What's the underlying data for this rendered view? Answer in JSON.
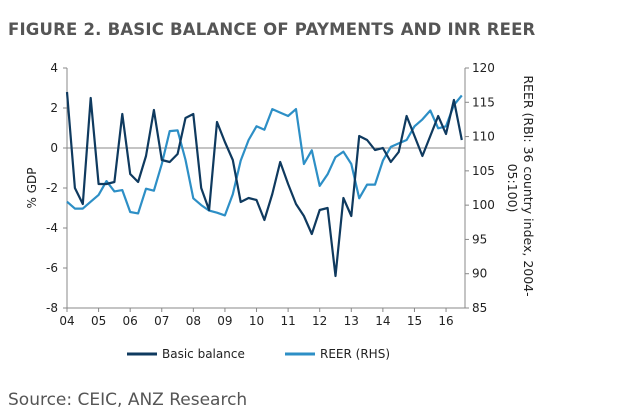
{
  "title": "FIGURE 2. BASIC BALANCE OF PAYMENTS AND INR REER",
  "source": "Source: CEIC, ANZ Research",
  "chart_data": {
    "type": "line",
    "xlabel": "",
    "ylabel": "% GDP",
    "y2label_lines": [
      "REER (RBI: 36 country index, 2004-",
      "05:100)"
    ],
    "ylim": [
      -8,
      4
    ],
    "y2lim": [
      85,
      120
    ],
    "yticks": [
      "4",
      "2",
      "0",
      "-2",
      "-4",
      "-6",
      "-8"
    ],
    "y2ticks": [
      "120",
      "115",
      "110",
      "105",
      "100",
      "95",
      "90",
      "85"
    ],
    "xticks": [
      "04",
      "05",
      "06",
      "07",
      "08",
      "09",
      "10",
      "11",
      "12",
      "13",
      "14",
      "15",
      "16"
    ],
    "grid": false,
    "legend": "bottom",
    "series": [
      {
        "name": "Basic balance",
        "color": "#0f3a5f",
        "axis": "left",
        "x": [
          2004.0,
          2004.25,
          2004.5,
          2004.75,
          2005.0,
          2005.25,
          2005.5,
          2005.75,
          2006.0,
          2006.25,
          2006.5,
          2006.75,
          2007.0,
          2007.25,
          2007.5,
          2007.75,
          2008.0,
          2008.25,
          2008.5,
          2008.75,
          2009.0,
          2009.25,
          2009.5,
          2009.75,
          2010.0,
          2010.25,
          2010.5,
          2010.75,
          2011.0,
          2011.25,
          2011.5,
          2011.75,
          2012.0,
          2012.25,
          2012.5,
          2012.75,
          2013.0,
          2013.25,
          2013.5,
          2013.75,
          2014.0,
          2014.25,
          2014.5,
          2014.75,
          2015.0,
          2015.25,
          2015.5,
          2015.75,
          2016.0,
          2016.25,
          2016.5
        ],
        "values": [
          2.8,
          -2.0,
          -2.8,
          2.5,
          -1.8,
          -1.8,
          -1.7,
          1.7,
          -1.3,
          -1.7,
          -0.4,
          1.9,
          -0.6,
          -0.7,
          -0.3,
          1.5,
          1.7,
          -2.0,
          -3.1,
          1.3,
          0.3,
          -0.6,
          -2.7,
          -2.5,
          -2.6,
          -3.6,
          -2.3,
          -0.7,
          -1.8,
          -2.8,
          -3.4,
          -4.3,
          -3.1,
          -3.0,
          -6.4,
          -2.5,
          -3.4,
          0.6,
          0.4,
          -0.1,
          0.0,
          -0.7,
          -0.2,
          1.6,
          0.6,
          -0.4,
          0.6,
          1.6,
          0.7,
          2.4,
          0.4
        ]
      },
      {
        "name": "REER (RHS)",
        "color": "#2d8fc6",
        "axis": "right",
        "x": [
          2004.0,
          2004.25,
          2004.5,
          2004.75,
          2005.0,
          2005.25,
          2005.5,
          2005.75,
          2006.0,
          2006.25,
          2006.5,
          2006.75,
          2007.0,
          2007.25,
          2007.5,
          2007.75,
          2008.0,
          2008.25,
          2008.5,
          2008.75,
          2009.0,
          2009.25,
          2009.5,
          2009.75,
          2010.0,
          2010.25,
          2010.5,
          2010.75,
          2011.0,
          2011.25,
          2011.5,
          2011.75,
          2012.0,
          2012.25,
          2012.5,
          2012.75,
          2013.0,
          2013.25,
          2013.5,
          2013.75,
          2014.0,
          2014.25,
          2014.5,
          2014.75,
          2015.0,
          2015.25,
          2015.5,
          2015.75,
          2016.0,
          2016.25,
          2016.5
        ],
        "values": [
          100.5,
          99.5,
          99.5,
          100.5,
          101.5,
          103.5,
          102.0,
          102.2,
          99.0,
          98.8,
          102.4,
          102.1,
          106.0,
          110.8,
          110.9,
          106.6,
          101.0,
          100.0,
          99.2,
          98.9,
          98.5,
          101.6,
          106.5,
          109.5,
          111.5,
          111.0,
          114.0,
          113.5,
          113.0,
          114.0,
          106.0,
          108.0,
          102.8,
          104.5,
          107.0,
          107.8,
          106.0,
          101.0,
          103.0,
          103.0,
          106.5,
          108.5,
          109.0,
          109.5,
          111.5,
          112.5,
          113.8,
          111.2,
          111.5,
          114.6,
          116.0
        ]
      }
    ]
  }
}
